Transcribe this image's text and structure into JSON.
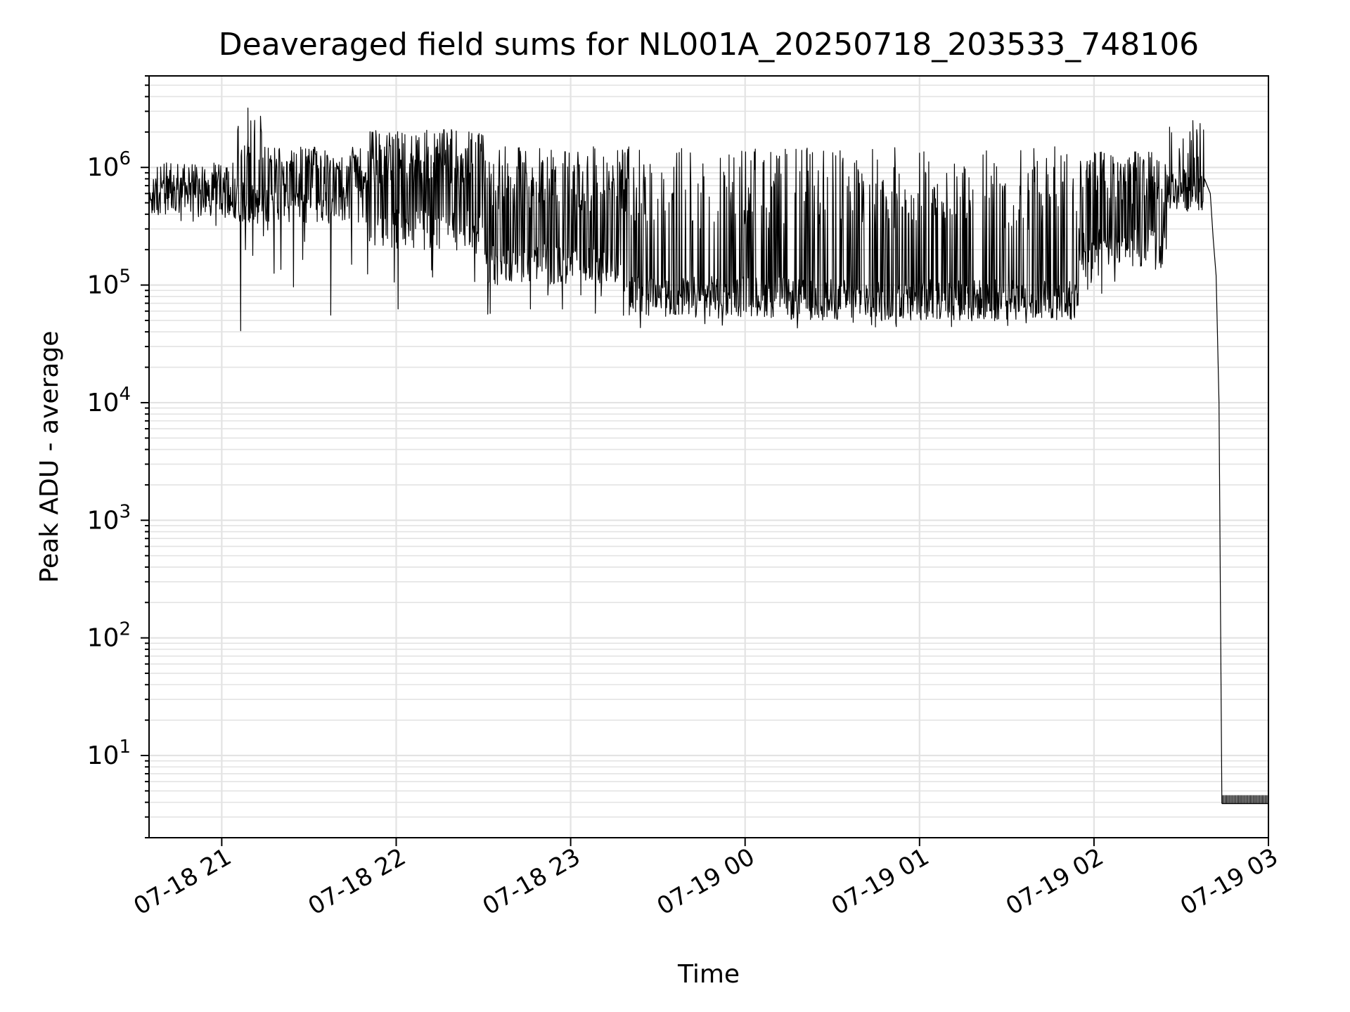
{
  "chart_data": {
    "type": "line",
    "title": "Deaveraged field sums for NL001A_20250718_203533_748106",
    "xlabel": "Time",
    "ylabel": "Peak ADU - average",
    "yscale": "log",
    "ylim": [
      2,
      6000000
    ],
    "xlim": [
      "07-18 20:35",
      "07-19 03:00"
    ],
    "grid": "both, major and minor",
    "x_ticks": [
      "07-18 21",
      "07-18 22",
      "07-18 23",
      "07-19 00",
      "07-19 01",
      "07-19 02",
      "07-19 03"
    ],
    "y_ticks": [
      {
        "base": "10",
        "exp": "1"
      },
      {
        "base": "10",
        "exp": "2"
      },
      {
        "base": "10",
        "exp": "3"
      },
      {
        "base": "10",
        "exp": "4"
      },
      {
        "base": "10",
        "exp": "5"
      },
      {
        "base": "10",
        "exp": "6"
      }
    ],
    "series": [
      {
        "color": "#000000",
        "segments": [
          {
            "start": "07-18 20:35",
            "end": "07-18 21:05",
            "typical": 550000,
            "low": 320000,
            "high": 1100000,
            "spike_rate": 0.25
          },
          {
            "start": "07-18 21:05",
            "end": "07-18 21:15",
            "typical": 500000,
            "low": 40000,
            "high": 3200000,
            "spike_rate": 0.3
          },
          {
            "start": "07-18 21:15",
            "end": "07-18 21:50",
            "typical": 500000,
            "low": 50000,
            "high": 1500000,
            "spike_rate": 0.5
          },
          {
            "start": "07-18 21:50",
            "end": "07-18 22:30",
            "typical": 300000,
            "low": 45000,
            "high": 2100000,
            "spike_rate": 0.55
          },
          {
            "start": "07-18 22:30",
            "end": "07-18 23:20",
            "typical": 150000,
            "low": 50000,
            "high": 1500000,
            "spike_rate": 0.5
          },
          {
            "start": "07-18 23:20",
            "end": "07-19 00:15",
            "typical": 80000,
            "low": 42000,
            "high": 1500000,
            "spike_rate": 0.25
          },
          {
            "start": "07-19 00:15",
            "end": "07-19 01:55",
            "typical": 75000,
            "low": 42000,
            "high": 1500000,
            "spike_rate": 0.3
          },
          {
            "start": "07-19 01:55",
            "end": "07-19 02:25",
            "typical": 200000,
            "low": 80000,
            "high": 1400000,
            "spike_rate": 0.5
          },
          {
            "start": "07-19 02:25",
            "end": "07-19 02:38",
            "typical": 650000,
            "low": 400000,
            "high": 2500000,
            "spike_rate": 0.2
          }
        ],
        "peaks": [
          {
            "x": "07-18 21:09",
            "y": 3200000
          },
          {
            "x": "07-18 22:19",
            "y": 2100000
          },
          {
            "x": "07-19 02:26",
            "y": 2200000
          },
          {
            "x": "07-19 02:34",
            "y": 2500000
          }
        ],
        "decline": [
          {
            "x": "07-19 02:38",
            "y": 800000
          },
          {
            "x": "07-19 02:40",
            "y": 600000
          },
          {
            "x": "07-19 02:41",
            "y": 250000
          },
          {
            "x": "07-19 02:42",
            "y": 120000
          },
          {
            "x": "07-19 02:43",
            "y": 10000
          },
          {
            "x": "07-19 02:44",
            "y": 3.9
          }
        ],
        "floor": {
          "start": "07-19 02:44",
          "end": "07-19 03:00",
          "y": 3.9,
          "y_high": 4.6
        }
      }
    ]
  }
}
